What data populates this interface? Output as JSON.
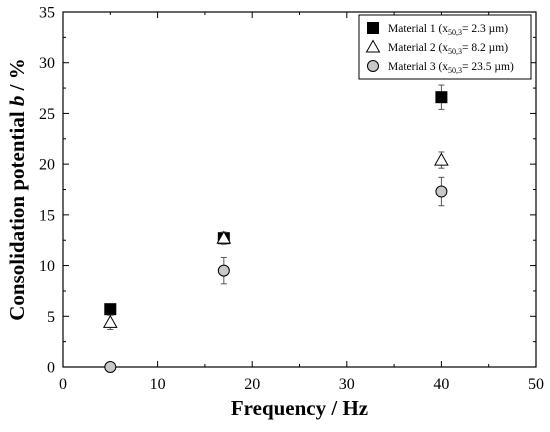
{
  "chart_data": {
    "type": "scatter",
    "xlabel": "Frequency / Hz",
    "ylabel_parts": {
      "before": "Consolidation potential ",
      "italic": "b",
      "after": " / %"
    },
    "xlim": [
      0,
      50
    ],
    "ylim": [
      0,
      35
    ],
    "x_ticks": [
      0,
      10,
      20,
      30,
      40,
      50
    ],
    "y_ticks": [
      0,
      5,
      10,
      15,
      20,
      25,
      30,
      35
    ],
    "grid": false,
    "legend_position": "top-right",
    "series": [
      {
        "name": "Material 1 (x50,3= 2.3 µm)",
        "legend": {
          "prefix": "Material 1 (x",
          "sub": "50,3",
          "suffix": "= 2.3 µm)"
        },
        "marker": "square",
        "color": "#000000",
        "points": [
          {
            "x": 5,
            "y": 5.7,
            "err": 0.2
          },
          {
            "x": 17,
            "y": 12.7,
            "err": 0.5
          },
          {
            "x": 40,
            "y": 26.6,
            "err": 1.2
          }
        ]
      },
      {
        "name": "Material 2 (x50,3= 8.2 µm)",
        "legend": {
          "prefix": "Material 2 (x",
          "sub": "50,3",
          "suffix": "= 8.2 µm)"
        },
        "marker": "triangle",
        "color": "#ffffff",
        "points": [
          {
            "x": 5,
            "y": 4.4,
            "err": 0.7
          },
          {
            "x": 17,
            "y": 12.7,
            "err": 0.6
          },
          {
            "x": 40,
            "y": 20.4,
            "err": 0.8
          }
        ]
      },
      {
        "name": "Material 3 (x50,3= 23.5 µm)",
        "legend": {
          "prefix": "Material 3 (x",
          "sub": "50,3",
          "suffix": "= 23.5 µm)"
        },
        "marker": "circle",
        "color": "#c8c8c8",
        "points": [
          {
            "x": 5,
            "y": 0.0,
            "err": 0.0
          },
          {
            "x": 17,
            "y": 9.5,
            "err": 1.3
          },
          {
            "x": 40,
            "y": 17.3,
            "err": 1.4
          }
        ]
      }
    ]
  }
}
